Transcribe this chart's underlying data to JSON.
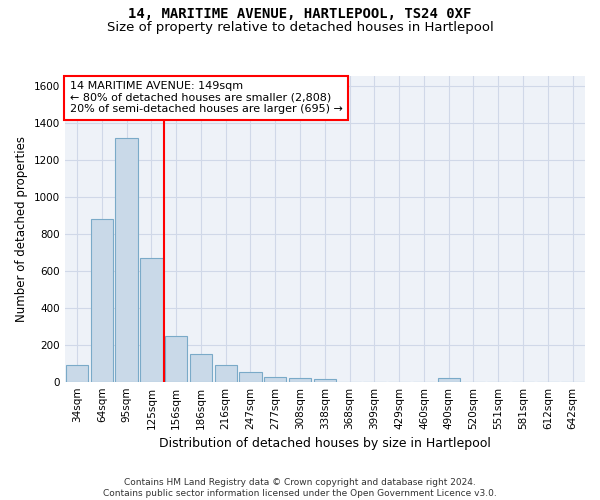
{
  "title": "14, MARITIME AVENUE, HARTLEPOOL, TS24 0XF",
  "subtitle": "Size of property relative to detached houses in Hartlepool",
  "xlabel": "Distribution of detached houses by size in Hartlepool",
  "ylabel": "Number of detached properties",
  "categories": [
    "34sqm",
    "64sqm",
    "95sqm",
    "125sqm",
    "156sqm",
    "186sqm",
    "216sqm",
    "247sqm",
    "277sqm",
    "308sqm",
    "338sqm",
    "368sqm",
    "399sqm",
    "429sqm",
    "460sqm",
    "490sqm",
    "520sqm",
    "551sqm",
    "581sqm",
    "612sqm",
    "642sqm"
  ],
  "values": [
    88,
    880,
    1320,
    670,
    245,
    148,
    88,
    52,
    25,
    22,
    15,
    0,
    0,
    0,
    0,
    22,
    0,
    0,
    0,
    0,
    0
  ],
  "bar_color": "#c9d9e8",
  "bar_edge_color": "#7aaac8",
  "vline_pos": 3.5,
  "vline_color": "red",
  "annotation_line1": "14 MARITIME AVENUE: 149sqm",
  "annotation_line2": "← 80% of detached houses are smaller (2,808)",
  "annotation_line3": "20% of semi-detached houses are larger (695) →",
  "annotation_box_color": "white",
  "annotation_box_edge_color": "red",
  "ylim": [
    0,
    1650
  ],
  "yticks": [
    0,
    200,
    400,
    600,
    800,
    1000,
    1200,
    1400,
    1600
  ],
  "grid_color": "#d0d8e8",
  "bg_color": "#eef2f8",
  "footer": "Contains HM Land Registry data © Crown copyright and database right 2024.\nContains public sector information licensed under the Open Government Licence v3.0.",
  "title_fontsize": 10,
  "subtitle_fontsize": 9.5,
  "tick_fontsize": 7.5,
  "ylabel_fontsize": 8.5,
  "xlabel_fontsize": 9,
  "annotation_fontsize": 8
}
